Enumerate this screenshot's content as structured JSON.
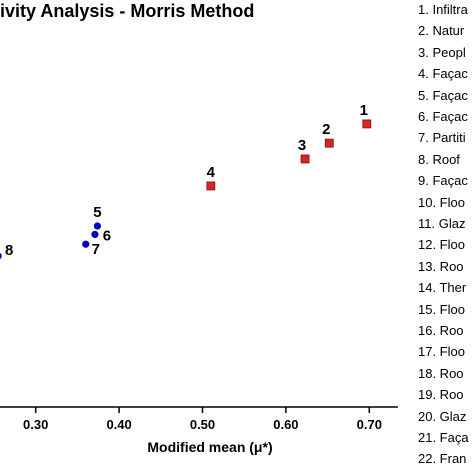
{
  "chart_data": {
    "type": "scatter",
    "title": "ivity Analysis - Morris Method",
    "xlabel": "Modified mean (μ*)",
    "ylabel": "",
    "xlim": [
      0.25,
      0.72
    ],
    "ylim": [
      0.0,
      1.0
    ],
    "xticks": [
      "0.30",
      "0.40",
      "0.50",
      "0.60",
      "0.70"
    ],
    "grid": false,
    "legend_position": "right",
    "series": [
      {
        "color": "#d62728",
        "marker": "square",
        "points": [
          {
            "label": "1",
            "x": 0.697,
            "y": 0.84
          },
          {
            "label": "2",
            "x": 0.652,
            "y": 0.783
          },
          {
            "label": "3",
            "x": 0.623,
            "y": 0.736
          },
          {
            "label": "4",
            "x": 0.51,
            "y": 0.656
          }
        ]
      },
      {
        "color": "#0000cc",
        "marker": "circle",
        "points": [
          {
            "label": "5",
            "x": 0.374,
            "y": 0.537
          },
          {
            "label": "6",
            "x": 0.371,
            "y": 0.512
          },
          {
            "label": "7",
            "x": 0.36,
            "y": 0.483
          },
          {
            "label": "8",
            "x": 0.255,
            "y": 0.448
          }
        ]
      }
    ],
    "legend_entries": [
      "1. Infiltra",
      "2. Natur",
      "3. Peopl",
      "4. Façac",
      "5. Façac",
      "6. Façac",
      "7. Partiti",
      "8. Roof",
      "9. Façac",
      "10. Floo",
      "11. Glaz",
      "12. Floo",
      "13. Roo",
      "14. Ther",
      "15. Floo",
      "16. Roo",
      "17. Floo",
      "18. Roo",
      "19. Roo",
      "20. Glaz",
      "21. Faça",
      "22. Fran"
    ]
  }
}
